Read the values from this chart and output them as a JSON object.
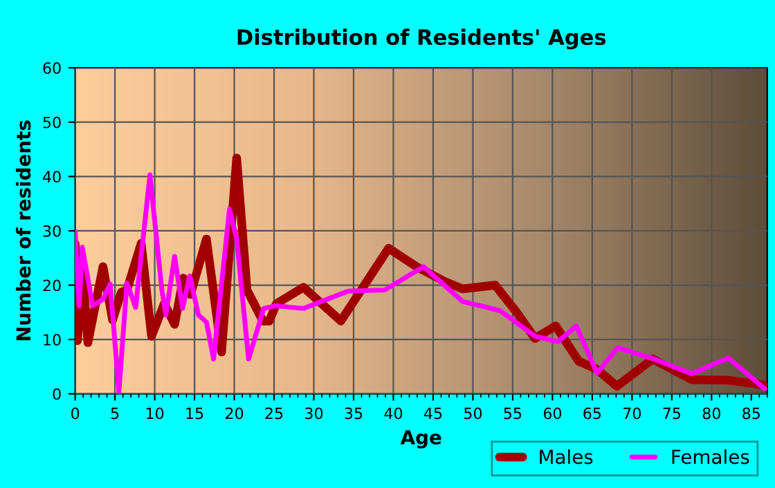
{
  "chart_data": {
    "type": "line",
    "title": "Distribution of Residents' Ages",
    "xlabel": "Age",
    "ylabel": "Number of residents",
    "xlim": [
      0,
      87
    ],
    "xticks": [
      0,
      5,
      10,
      15,
      20,
      25,
      30,
      35,
      40,
      45,
      50,
      55,
      60,
      65,
      70,
      75,
      80,
      85
    ],
    "ylim": [
      0,
      60
    ],
    "yticks": [
      0,
      10,
      20,
      30,
      40,
      50,
      60
    ],
    "grid": true,
    "legend": "bottom right",
    "series": [
      {
        "name": "Males",
        "color": "#a00000",
        "x": [
          0,
          0.3,
          0.9,
          1.6,
          3.5,
          4.7,
          5.8,
          6.5,
          8.3,
          9.6,
          11.2,
          12.5,
          13.6,
          14.5,
          16.5,
          18.4,
          20.3,
          21.6,
          23.6,
          24.4,
          25.3,
          28.7,
          33.4,
          39.4,
          42.9,
          46.4,
          48.7,
          52.8,
          55.5,
          57.8,
          60.4,
          63.3,
          65.6,
          68.1,
          72.6,
          77.5,
          82.1,
          86.7
        ],
        "values": [
          27.6,
          9.8,
          23.4,
          9.4,
          23.4,
          13.6,
          18.7,
          19.1,
          27.7,
          10.6,
          16.6,
          12.8,
          21.3,
          18.3,
          28.5,
          7.7,
          43.4,
          19.1,
          13.4,
          13.4,
          16.6,
          19.6,
          13.4,
          26.8,
          23.4,
          20.7,
          19.3,
          20,
          15,
          10.2,
          12.5,
          6,
          4.5,
          1.4,
          6.4,
          2.6,
          2.5,
          1.6
        ]
      },
      {
        "name": "Females",
        "color": "#ff00ff",
        "x": [
          0,
          0.5,
          0.9,
          2.2,
          3.5,
          4.4,
          5.5,
          6.5,
          7.6,
          9.4,
          10.9,
          11.4,
          12.5,
          13.5,
          14.4,
          15.5,
          16.5,
          17.4,
          19.4,
          20.3,
          21.8,
          23.7,
          25.2,
          28.7,
          34.3,
          38.9,
          43.8,
          48.7,
          53.4,
          57.8,
          60.7,
          63,
          65.6,
          68.2,
          72.8,
          77.5,
          82.1,
          86.7
        ],
        "values": [
          29.8,
          16.2,
          27,
          16.2,
          17.4,
          20.2,
          0.4,
          20.4,
          15.9,
          40.3,
          19.1,
          14.5,
          25.3,
          15.7,
          21.7,
          14.5,
          13.2,
          6.4,
          34,
          28.5,
          6.4,
          15.7,
          16.2,
          15.7,
          18.9,
          19.1,
          23.4,
          17,
          15.3,
          10.6,
          9.6,
          12.5,
          3.8,
          8.5,
          6.4,
          3.7,
          6.6,
          0.9
        ]
      }
    ]
  }
}
